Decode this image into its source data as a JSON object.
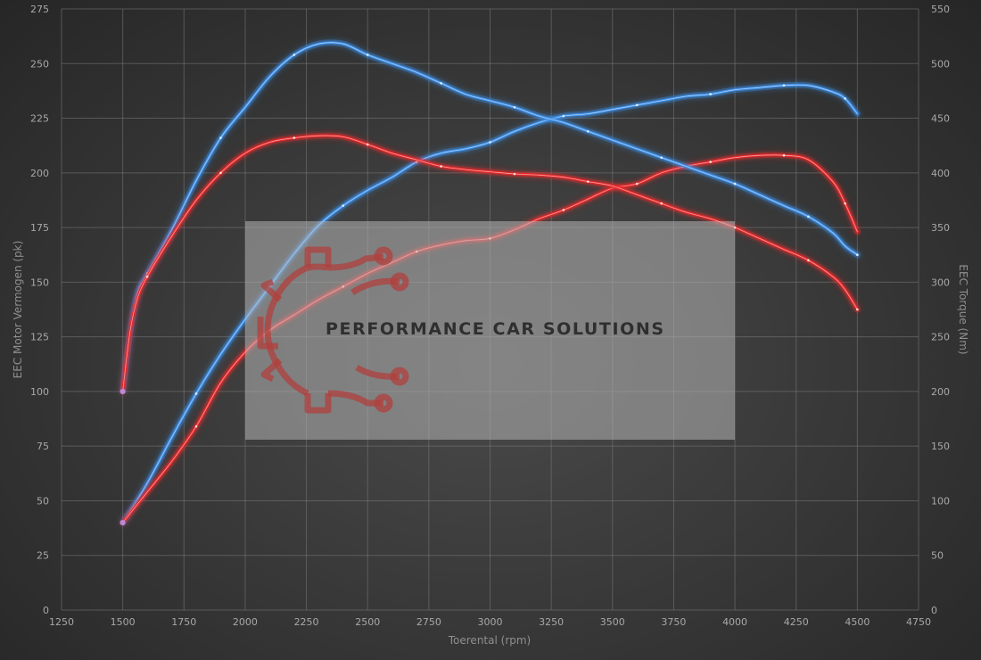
{
  "chart_data": {
    "type": "line",
    "xlabel": "Toerental (rpm)",
    "ylabel_left": "EEC Motor Vermogen (pk)",
    "ylabel_right": "EEC Torque (Nm)",
    "xlim": [
      1250,
      4750
    ],
    "ylim_left": [
      0,
      275
    ],
    "ylim_right": [
      0,
      550
    ],
    "x_ticks": [
      1250,
      1500,
      1750,
      2000,
      2250,
      2500,
      2750,
      3000,
      3250,
      3500,
      3750,
      4000,
      4250,
      4500,
      4750
    ],
    "y_ticks_left": [
      0,
      25,
      50,
      75,
      100,
      125,
      150,
      175,
      200,
      225,
      250,
      275
    ],
    "y_ticks_right": [
      0,
      50,
      100,
      150,
      200,
      250,
      300,
      350,
      400,
      450,
      500,
      550
    ],
    "grid": true,
    "colors": {
      "tuned": "#3d8fe8",
      "stock": "#e8282a",
      "start": "#b88ad8"
    },
    "series": [
      {
        "role": "tuned-power",
        "axis": "left",
        "color": "#3d8fe8",
        "points": [
          [
            1500,
            40
          ],
          [
            1600,
            58
          ],
          [
            1700,
            79
          ],
          [
            1800,
            99
          ],
          [
            1900,
            117
          ],
          [
            2000,
            133
          ],
          [
            2100,
            148
          ],
          [
            2200,
            163
          ],
          [
            2300,
            176
          ],
          [
            2400,
            185
          ],
          [
            2500,
            192
          ],
          [
            2600,
            198
          ],
          [
            2700,
            205
          ],
          [
            2800,
            209
          ],
          [
            2900,
            211
          ],
          [
            3000,
            214
          ],
          [
            3100,
            219
          ],
          [
            3200,
            223
          ],
          [
            3300,
            226
          ],
          [
            3400,
            227
          ],
          [
            3500,
            229
          ],
          [
            3600,
            231
          ],
          [
            3700,
            233
          ],
          [
            3800,
            235
          ],
          [
            3900,
            236
          ],
          [
            4000,
            238
          ],
          [
            4100,
            239
          ],
          [
            4200,
            240
          ],
          [
            4300,
            240
          ],
          [
            4400,
            237
          ],
          [
            4450,
            234
          ],
          [
            4500,
            227
          ]
        ]
      },
      {
        "role": "stock-power",
        "axis": "left",
        "color": "#e8282a",
        "points": [
          [
            1500,
            40
          ],
          [
            1600,
            54
          ],
          [
            1700,
            68
          ],
          [
            1800,
            84
          ],
          [
            1900,
            104
          ],
          [
            2000,
            118
          ],
          [
            2100,
            128
          ],
          [
            2200,
            135
          ],
          [
            2300,
            142
          ],
          [
            2400,
            148
          ],
          [
            2500,
            154
          ],
          [
            2600,
            159
          ],
          [
            2700,
            164
          ],
          [
            2800,
            167
          ],
          [
            2900,
            169
          ],
          [
            3000,
            170
          ],
          [
            3100,
            174
          ],
          [
            3200,
            179
          ],
          [
            3300,
            183
          ],
          [
            3400,
            188
          ],
          [
            3500,
            193
          ],
          [
            3600,
            195
          ],
          [
            3700,
            200
          ],
          [
            3800,
            203
          ],
          [
            3900,
            205
          ],
          [
            4000,
            207
          ],
          [
            4100,
            208
          ],
          [
            4200,
            208
          ],
          [
            4300,
            206
          ],
          [
            4400,
            196
          ],
          [
            4450,
            186
          ],
          [
            4500,
            173
          ]
        ]
      },
      {
        "role": "tuned-torque",
        "axis": "right",
        "color": "#3d8fe8",
        "points": [
          [
            1500,
            200
          ],
          [
            1530,
            255
          ],
          [
            1560,
            290
          ],
          [
            1600,
            308
          ],
          [
            1700,
            348
          ],
          [
            1800,
            393
          ],
          [
            1900,
            432
          ],
          [
            2000,
            460
          ],
          [
            2100,
            488
          ],
          [
            2200,
            508
          ],
          [
            2300,
            518
          ],
          [
            2400,
            518
          ],
          [
            2500,
            508
          ],
          [
            2600,
            500
          ],
          [
            2700,
            492
          ],
          [
            2800,
            482
          ],
          [
            2900,
            472
          ],
          [
            3000,
            466
          ],
          [
            3100,
            460
          ],
          [
            3200,
            452
          ],
          [
            3300,
            446
          ],
          [
            3400,
            438
          ],
          [
            3500,
            430
          ],
          [
            3600,
            422
          ],
          [
            3700,
            414
          ],
          [
            3800,
            406
          ],
          [
            3900,
            398
          ],
          [
            4000,
            390
          ],
          [
            4100,
            380
          ],
          [
            4200,
            370
          ],
          [
            4300,
            360
          ],
          [
            4400,
            345
          ],
          [
            4450,
            333
          ],
          [
            4500,
            325
          ]
        ]
      },
      {
        "role": "stock-torque",
        "axis": "right",
        "color": "#e8282a",
        "points": [
          [
            1500,
            200
          ],
          [
            1530,
            255
          ],
          [
            1560,
            285
          ],
          [
            1600,
            305
          ],
          [
            1700,
            342
          ],
          [
            1800,
            375
          ],
          [
            1900,
            400
          ],
          [
            2000,
            418
          ],
          [
            2100,
            428
          ],
          [
            2200,
            432
          ],
          [
            2300,
            434
          ],
          [
            2400,
            433
          ],
          [
            2500,
            426
          ],
          [
            2600,
            418
          ],
          [
            2700,
            412
          ],
          [
            2800,
            406
          ],
          [
            2900,
            403
          ],
          [
            3000,
            401
          ],
          [
            3100,
            399
          ],
          [
            3200,
            398
          ],
          [
            3300,
            396
          ],
          [
            3400,
            392
          ],
          [
            3500,
            388
          ],
          [
            3600,
            380
          ],
          [
            3700,
            372
          ],
          [
            3800,
            364
          ],
          [
            3900,
            358
          ],
          [
            4000,
            350
          ],
          [
            4100,
            340
          ],
          [
            4200,
            330
          ],
          [
            4300,
            320
          ],
          [
            4400,
            305
          ],
          [
            4450,
            293
          ],
          [
            4500,
            275
          ]
        ]
      }
    ]
  },
  "watermark": {
    "text": "PERFORMANCE CAR SOLUTIONS",
    "logo_icon": "gear-circuit-logo-icon"
  }
}
